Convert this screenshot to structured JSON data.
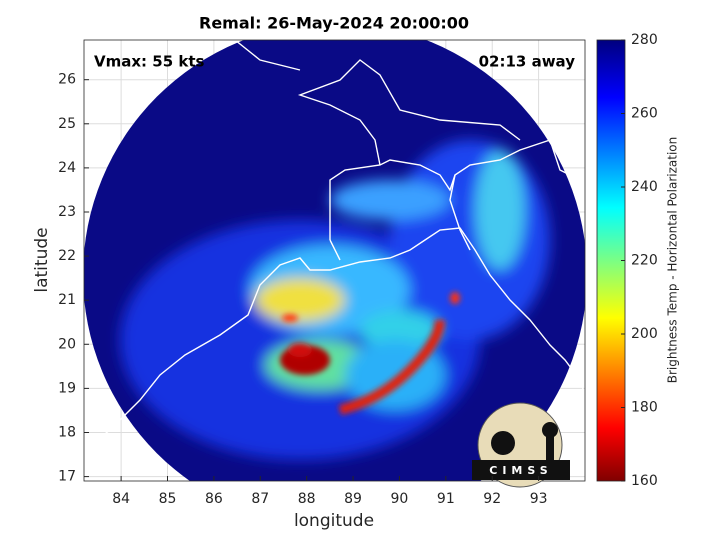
{
  "title": "Remal: 26-May-2024 20:00:00",
  "annotations": {
    "vmax": "Vmax: 55 kts",
    "time_away": "02:13 away"
  },
  "axes": {
    "xlabel": "longitude",
    "ylabel": "latitude",
    "xlim": [
      83.2,
      94
    ],
    "xticks": [
      84,
      85,
      86,
      87,
      88,
      89,
      90,
      91,
      92,
      93
    ],
    "ylim": [
      16.9,
      26.9
    ],
    "yticks": [
      17,
      18,
      19,
      20,
      21,
      22,
      23,
      24,
      25,
      26
    ]
  },
  "colorbar": {
    "label": "Brightness Temp - Horizontal Polarization",
    "lim": [
      160,
      280
    ],
    "ticks": [
      160,
      180,
      200,
      220,
      240,
      260,
      280
    ]
  },
  "logo": "CIMSS"
}
